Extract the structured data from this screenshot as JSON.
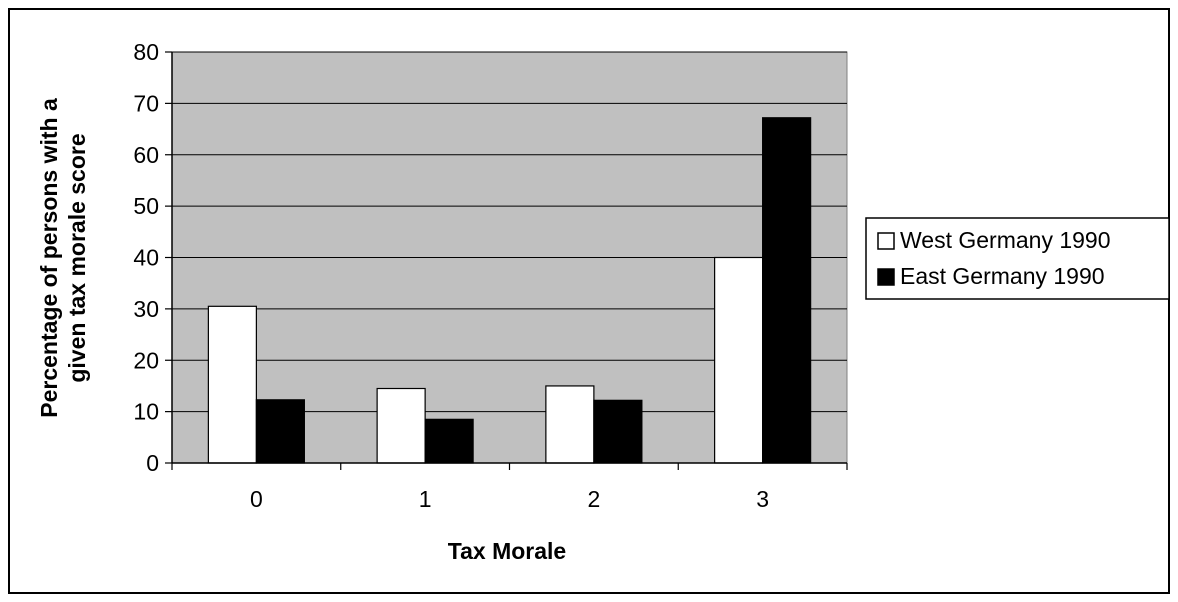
{
  "chart_data": {
    "type": "bar",
    "categories": [
      "0",
      "1",
      "2",
      "3"
    ],
    "series": [
      {
        "name": "West Germany 1990",
        "color": "#ffffff",
        "values": [
          30.5,
          14.5,
          15.0,
          40.0
        ]
      },
      {
        "name": "East Germany 1990",
        "color": "#000000",
        "values": [
          12.3,
          8.5,
          12.2,
          67.2
        ]
      }
    ],
    "xlabel": "Tax Morale",
    "ylabel_lines": [
      "Percentage of persons with a",
      "given tax morale score"
    ],
    "ylim": [
      0,
      80
    ],
    "yticks": [
      "0",
      "10",
      "20",
      "30",
      "40",
      "50",
      "60",
      "70",
      "80"
    ],
    "grid": true,
    "plot_background": "#c0c0c0",
    "legend_position": "right"
  }
}
